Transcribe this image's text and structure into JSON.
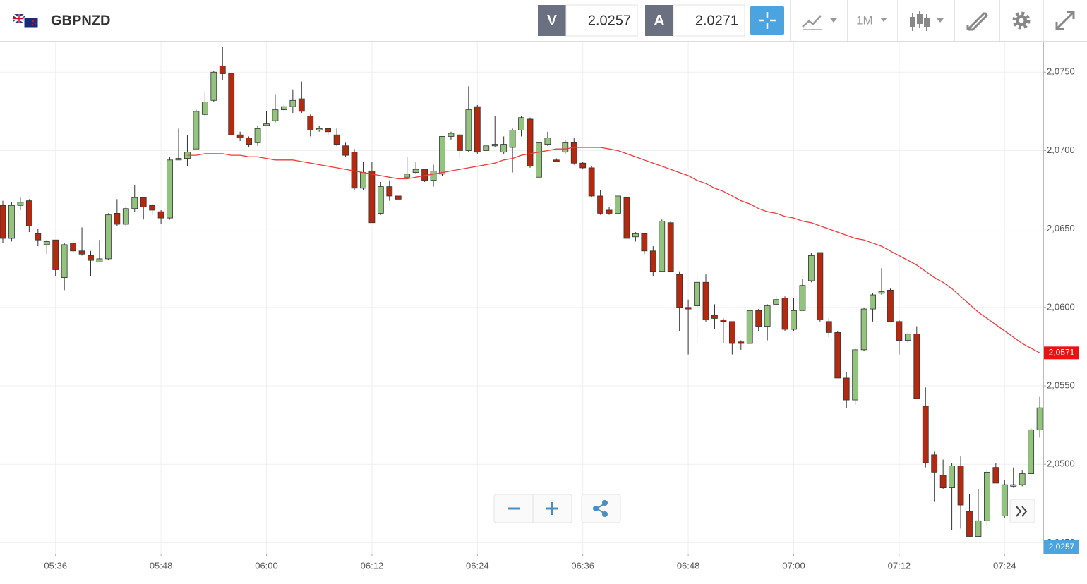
{
  "toolbar": {
    "symbol": "GBPNZD",
    "bid_label": "V",
    "bid": 2.0257,
    "ask_label": "A",
    "ask": 2.0271,
    "timeframe": "1M"
  },
  "chart_data": {
    "type": "candlestick",
    "categories": [
      null,
      null,
      null,
      null,
      null,
      null,
      "05:36",
      null,
      null,
      null,
      null,
      null,
      null,
      null,
      null,
      null,
      null,
      null,
      "05:48",
      null,
      null,
      null,
      null,
      null,
      null,
      null,
      null,
      null,
      null,
      null,
      "06:00",
      null,
      null,
      null,
      null,
      null,
      null,
      null,
      null,
      null,
      null,
      null,
      "06:12",
      null,
      null,
      null,
      null,
      null,
      null,
      null,
      null,
      null,
      null,
      null,
      "06:24",
      null,
      null,
      null,
      null,
      null,
      null,
      null,
      null,
      null,
      null,
      null,
      "06:36",
      null,
      null,
      null,
      null,
      null,
      null,
      null,
      null,
      null,
      null,
      null,
      "06:48",
      null,
      null,
      null,
      null,
      null,
      null,
      null,
      null,
      null,
      null,
      null,
      "07:00",
      null,
      null,
      null,
      null,
      null,
      null,
      null,
      null,
      null,
      null,
      null,
      "07:12",
      null,
      null,
      null,
      null,
      null,
      null,
      null,
      null,
      null,
      null,
      null,
      "07:24",
      null,
      null,
      null,
      null
    ],
    "open": [
      2.0665,
      2.0644,
      2.0665,
      2.0668,
      2.0647,
      2.064,
      2.0643,
      2.0619,
      2.0641,
      2.0636,
      2.0633,
      2.0629,
      2.0631,
      2.066,
      2.0653,
      2.0663,
      2.067,
      2.0665,
      2.0661,
      2.0657,
      2.0694,
      2.0695,
      2.0701,
      2.0723,
      2.0732,
      2.0754,
      2.0749,
      2.071,
      2.0708,
      2.0705,
      2.0716,
      2.0719,
      2.0726,
      2.0728,
      2.0733,
      2.0722,
      2.0713,
      2.0714,
      2.071,
      2.0703,
      2.0699,
      2.0676,
      2.0687,
      2.066,
      2.0677,
      2.0671,
      2.0683,
      2.0686,
      2.0688,
      2.0681,
      2.0685,
      2.0709,
      2.071,
      2.07,
      2.0728,
      2.07,
      2.0703,
      2.0699,
      2.0702,
      2.0713,
      2.072,
      2.0683,
      2.0704,
      2.0694,
      2.0699,
      2.0705,
      2.0692,
      2.0689,
      2.0671,
      2.0662,
      2.066,
      2.067,
      2.0645,
      2.0647,
      2.0636,
      2.0623,
      2.0654,
      2.0621,
      2.06,
      2.0601,
      2.0616,
      2.0595,
      2.0592,
      2.0591,
      2.0578,
      2.0577,
      2.0598,
      2.0588,
      2.0602,
      2.0606,
      2.0586,
      2.0598,
      2.0617,
      2.0635,
      2.0591,
      2.0584,
      2.0555,
      2.0541,
      2.0573,
      2.0599,
      2.0609,
      2.0611,
      2.0591,
      2.0579,
      2.0583,
      2.0537,
      2.0506,
      2.0493,
      2.0485,
      2.0499,
      2.047,
      2.0454,
      2.0464,
      2.0498,
      2.0467,
      2.0486,
      2.0487,
      2.0494,
      2.0522
    ],
    "high": [
      2.0668,
      2.0667,
      2.067,
      2.0669,
      2.065,
      2.0643,
      2.0643,
      2.0641,
      2.0643,
      2.0651,
      2.0636,
      2.0643,
      2.066,
      2.0669,
      2.0664,
      2.0678,
      2.067,
      2.0666,
      2.0662,
      2.0696,
      2.0714,
      2.071,
      2.0726,
      2.0737,
      2.0751,
      2.0766,
      2.0749,
      2.0712,
      2.0709,
      2.0716,
      2.0725,
      2.0736,
      2.073,
      2.0739,
      2.0744,
      2.0723,
      2.0716,
      2.0714,
      2.0714,
      2.0705,
      2.0701,
      2.0693,
      2.0693,
      2.068,
      2.0681,
      2.0671,
      2.0696,
      2.0693,
      2.0688,
      2.0691,
      2.0709,
      2.0712,
      2.0711,
      2.0741,
      2.0729,
      2.0703,
      2.0722,
      2.0709,
      2.0714,
      2.0722,
      2.0721,
      2.0705,
      2.0712,
      2.0695,
      2.0707,
      2.0708,
      2.0693,
      2.069,
      2.0675,
      2.0664,
      2.0677,
      2.067,
      2.0648,
      2.0647,
      2.0639,
      2.0656,
      2.0655,
      2.0623,
      2.0605,
      2.0621,
      2.0621,
      2.0602,
      2.0593,
      2.0591,
      2.0579,
      2.0598,
      2.0599,
      2.0602,
      2.0607,
      2.0607,
      2.0606,
      2.0618,
      2.0635,
      2.0635,
      2.0593,
      2.0585,
      2.0559,
      2.0574,
      2.06,
      2.0609,
      2.0625,
      2.0612,
      2.0592,
      2.0584,
      2.0588,
      2.0549,
      2.0508,
      2.0503,
      2.0501,
      2.0505,
      2.0481,
      2.0484,
      2.0497,
      2.0501,
      2.049,
      2.0498,
      2.0496,
      2.0523,
      2.0543
    ],
    "low": [
      2.0641,
      2.0642,
      2.0662,
      2.0648,
      2.0639,
      2.0634,
      2.062,
      2.0611,
      2.0635,
      2.0633,
      2.062,
      2.0629,
      2.063,
      2.0652,
      2.0652,
      2.0661,
      2.0656,
      2.0659,
      2.0653,
      2.0656,
      2.0694,
      2.069,
      2.0701,
      2.0722,
      2.0731,
      2.0745,
      2.071,
      2.0706,
      2.0702,
      2.0703,
      2.0716,
      2.0718,
      2.0725,
      2.0724,
      2.0724,
      2.0709,
      2.0712,
      2.071,
      2.0703,
      2.0696,
      2.0675,
      2.0675,
      2.0654,
      2.0659,
      2.0668,
      2.0669,
      2.0682,
      2.0685,
      2.068,
      2.0677,
      2.0684,
      2.0707,
      2.0695,
      2.0699,
      2.0698,
      2.07,
      2.0702,
      2.0698,
      2.0686,
      2.0709,
      2.0689,
      2.0683,
      2.0703,
      2.0693,
      2.0698,
      2.0691,
      2.0688,
      2.067,
      2.0659,
      2.0659,
      2.0659,
      2.0644,
      2.0642,
      2.0634,
      2.062,
      2.0623,
      2.0623,
      2.0585,
      2.057,
      2.0577,
      2.0591,
      2.0586,
      2.0577,
      2.057,
      2.0573,
      2.0577,
      2.0585,
      2.0579,
      2.0601,
      2.0585,
      2.0585,
      2.0598,
      2.0616,
      2.0591,
      2.0581,
      2.0555,
      2.0536,
      2.0538,
      2.0572,
      2.0591,
      2.0608,
      2.0591,
      2.057,
      2.0577,
      2.0542,
      2.0498,
      2.0476,
      2.0484,
      2.0458,
      2.0459,
      2.0454,
      2.0454,
      2.0461,
      2.0488,
      2.0466,
      2.0485,
      2.0486,
      2.0494,
      2.0517
    ],
    "close": [
      2.0644,
      2.0665,
      2.0667,
      2.0652,
      2.0643,
      2.0642,
      2.0624,
      2.064,
      2.0636,
      2.0634,
      2.063,
      2.0631,
      2.0659,
      2.0653,
      2.0663,
      2.067,
      2.0664,
      2.0662,
      2.0657,
      2.0694,
      2.0695,
      2.0699,
      2.0725,
      2.0731,
      2.075,
      2.0749,
      2.071,
      2.0708,
      2.0704,
      2.0714,
      2.0717,
      2.0726,
      2.0728,
      2.0732,
      2.0725,
      2.0713,
      2.0714,
      2.0712,
      2.0704,
      2.0697,
      2.0676,
      2.0686,
      2.0654,
      2.0677,
      2.0671,
      2.0669,
      2.0685,
      2.0688,
      2.0681,
      2.0687,
      2.0709,
      2.0711,
      2.07,
      2.0726,
      2.0699,
      2.0703,
      2.0704,
      2.0704,
      2.0713,
      2.0721,
      2.069,
      2.0705,
      2.0708,
      2.0693,
      2.0705,
      2.0692,
      2.0689,
      2.0671,
      2.066,
      2.066,
      2.0671,
      2.0644,
      2.0647,
      2.0636,
      2.0623,
      2.0655,
      2.0623,
      2.06,
      2.0599,
      2.0616,
      2.0592,
      2.0593,
      2.0591,
      2.0577,
      2.0577,
      2.0598,
      2.0588,
      2.0601,
      2.0605,
      2.0586,
      2.0598,
      2.0614,
      2.0633,
      2.0592,
      2.0584,
      2.0555,
      2.0541,
      2.0573,
      2.0599,
      2.0608,
      2.061,
      2.0591,
      2.0579,
      2.0583,
      2.0542,
      2.0501,
      2.0495,
      2.0485,
      2.0499,
      2.0474,
      2.0454,
      2.0464,
      2.0495,
      2.0488,
      2.0487,
      2.0487,
      2.0494,
      2.0522,
      2.0536
    ],
    "up_color": "#93c47d",
    "down_color": "#b5290f",
    "moving_average": {
      "color": "#ee3b3b",
      "values": [
        null,
        null,
        null,
        null,
        null,
        null,
        null,
        null,
        null,
        null,
        null,
        null,
        null,
        null,
        null,
        null,
        null,
        null,
        null,
        null,
        null,
        2.0697,
        2.0697,
        2.0698,
        2.0698,
        2.0698,
        2.0697,
        2.0697,
        2.0696,
        2.0696,
        2.0695,
        2.0694,
        2.0694,
        2.0694,
        2.0693,
        2.0692,
        2.0691,
        2.069,
        2.0689,
        2.0688,
        2.0687,
        2.0686,
        2.0685,
        2.0684,
        2.0683,
        2.0682,
        2.0682,
        2.0683,
        2.0684,
        2.0685,
        2.0686,
        2.0687,
        2.0688,
        2.0689,
        2.069,
        2.0691,
        2.0692,
        2.0694,
        2.0695,
        2.0697,
        2.0698,
        2.0699,
        2.07,
        2.0701,
        2.0701,
        2.0702,
        2.0702,
        2.0702,
        2.0702,
        2.0701,
        2.07,
        2.0698,
        2.0696,
        2.0694,
        2.0692,
        2.069,
        2.0688,
        2.0686,
        2.0684,
        2.0681,
        2.0679,
        2.0676,
        2.0674,
        2.0671,
        2.0668,
        2.0666,
        2.0663,
        2.0661,
        2.066,
        2.0658,
        2.0657,
        2.0655,
        2.0654,
        2.0652,
        2.065,
        2.0648,
        2.0646,
        2.0644,
        2.0643,
        2.0641,
        2.0639,
        2.0636,
        2.0633,
        2.063,
        2.0627,
        2.0623,
        2.0619,
        2.0616,
        2.0612,
        2.0607,
        2.0602,
        2.0597,
        2.0593,
        2.0589,
        2.0585,
        2.0581,
        2.0577,
        2.0574,
        2.0571
      ]
    },
    "ma_last_label": "2,0571",
    "price_label": "2,0257",
    "ylim": [
      2.0443,
      2.0769
    ],
    "yticks": [
      {
        "value": 2.045,
        "label": "2,0450"
      },
      {
        "value": 2.05,
        "label": "2,0500"
      },
      {
        "value": 2.055,
        "label": "2,0550"
      },
      {
        "value": 2.06,
        "label": "2,0600"
      },
      {
        "value": 2.065,
        "label": "2,0650"
      },
      {
        "value": 2.07,
        "label": "2,0700"
      },
      {
        "value": 2.075,
        "label": "2,0750"
      }
    ],
    "grid": true
  }
}
